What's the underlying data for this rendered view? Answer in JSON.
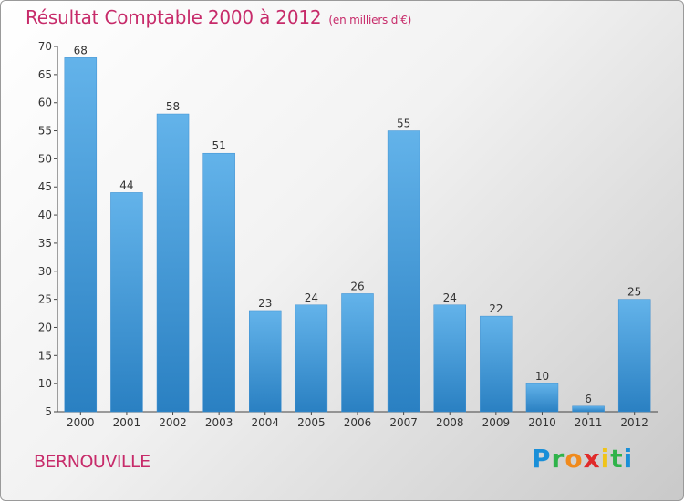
{
  "title": "Résultat Comptable 2000 à 2012",
  "subtitle": "(en milliers d'€)",
  "commune": "BERNOUVILLE",
  "logo": {
    "letters": [
      "P",
      "r",
      "o",
      "x",
      "i",
      "t",
      "i"
    ],
    "colors": [
      "#1a8fd8",
      "#2fb34a",
      "#f08a1c",
      "#e02a2a",
      "#f0c419",
      "#2fb34a",
      "#1a8fd8"
    ]
  },
  "colors": {
    "bar_light": "#63b3ea",
    "bar_dark": "#2a80c2",
    "title": "#c72b6a",
    "axis": "#444444"
  },
  "chart_data": {
    "type": "bar",
    "title": "Résultat Comptable 2000 à 2012",
    "subtitle": "(en milliers d'€)",
    "xlabel": "",
    "ylabel": "",
    "categories": [
      "2000",
      "2001",
      "2002",
      "2003",
      "2004",
      "2005",
      "2006",
      "2007",
      "2008",
      "2009",
      "2010",
      "2011",
      "2012"
    ],
    "values": [
      68,
      44,
      58,
      51,
      23,
      24,
      26,
      55,
      24,
      22,
      10,
      6,
      25
    ],
    "ylim": [
      5,
      70
    ],
    "yticks": [
      5,
      10,
      15,
      20,
      25,
      30,
      35,
      40,
      45,
      50,
      55,
      60,
      65,
      70
    ],
    "grid": false
  }
}
